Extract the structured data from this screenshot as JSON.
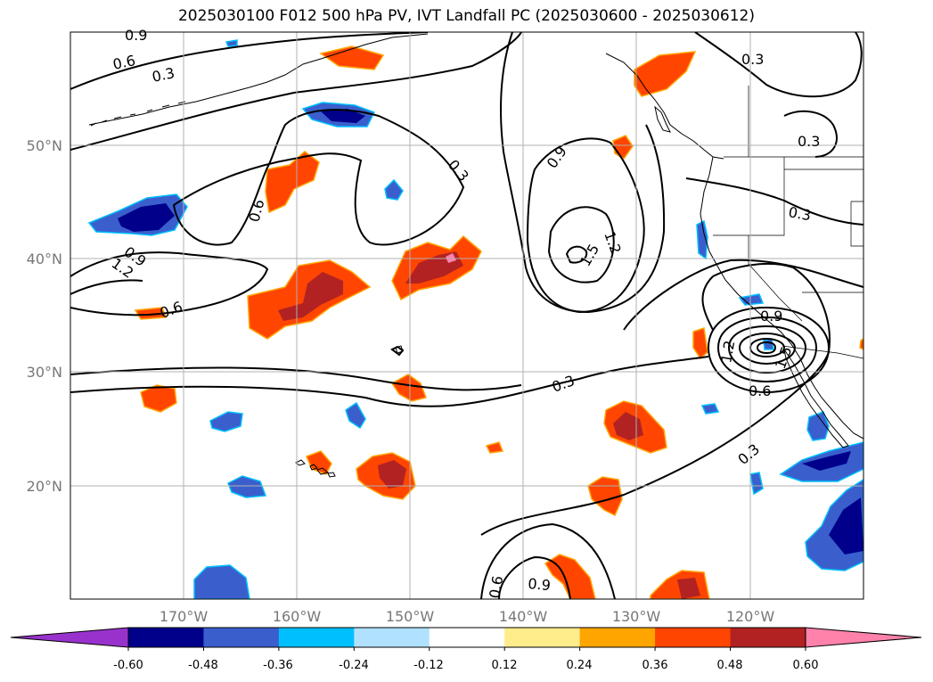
{
  "title": "2025030100 F012 500 hPa PV, IVT Landfall PC (2025030600 - 2025030612)",
  "lat_labels": [
    "50°N",
    "40°N",
    "30°N",
    "20°N"
  ],
  "lon_labels": [
    "170°W",
    "160°W",
    "150°W",
    "140°W",
    "130°W",
    "120°W"
  ],
  "contour_labels": [
    "0.9",
    "0.6",
    "0.3",
    "0.9",
    "1.2",
    "0.6",
    "0.6",
    "0.3",
    "0.9",
    "1.2",
    "1.5",
    "0.3",
    "0.3",
    "0.3",
    "0.3",
    "0.9",
    "1.2",
    "1.5",
    "0.6",
    "0.3",
    "0.6",
    "0.9"
  ],
  "colorbar": {
    "levels": [
      "-0.60",
      "-0.48",
      "-0.36",
      "-0.24",
      "-0.12",
      "0.12",
      "0.24",
      "0.36",
      "0.48",
      "0.60"
    ],
    "colors": [
      "#9932cc",
      "#00008b",
      "#3a5fcd",
      "#00bfff",
      "#b0e2ff",
      "#ffffff",
      "#ffec8b",
      "#ffa500",
      "#ff4500",
      "#b22222",
      "#ff82ab"
    ]
  },
  "fill_colors": {
    "warm_mid": "#ff4500",
    "warm_high": "#b22222",
    "warm_max": "#ff82ab",
    "warm_edge": "#ffa500",
    "cool_mid": "#3a5fcd",
    "cool_high": "#00008b",
    "cool_edge": "#00bfff"
  }
}
